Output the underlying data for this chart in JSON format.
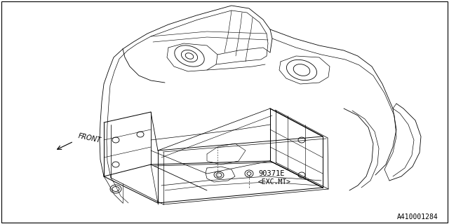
{
  "background_color": "#ffffff",
  "border_color": "#000000",
  "diagram_label": "A410001284",
  "front_label": "FRONT",
  "part_label_1": "90371E",
  "part_label_2": "<EXC.MT>",
  "line_color": "#000000",
  "line_width": 0.6,
  "fig_width": 6.4,
  "fig_height": 3.2,
  "dpi": 100
}
